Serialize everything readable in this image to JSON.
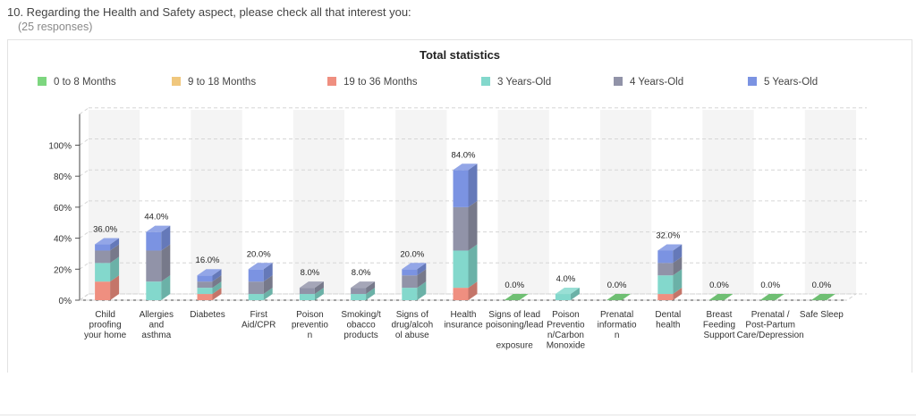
{
  "question": {
    "title": "10. Regarding the Health and Safety aspect, please check all that interest you:",
    "responses": "(25 responses)"
  },
  "chart_data": {
    "type": "bar",
    "stacked": true,
    "three_d": true,
    "title": "Total statistics",
    "xlabel": "",
    "ylabel": "",
    "ylim": [
      0,
      120
    ],
    "yticks": [
      0,
      20,
      40,
      60,
      80,
      100
    ],
    "ytick_labels": [
      "0%",
      "20%",
      "40%",
      "60%",
      "80%",
      "100%"
    ],
    "grid": true,
    "legend_position": "top",
    "categories": [
      [
        "Child",
        "proofing",
        "your home"
      ],
      [
        "Allergies",
        "and",
        "asthma"
      ],
      [
        "Diabetes"
      ],
      [
        "First",
        "Aid/CPR"
      ],
      [
        "Poison",
        "preventio",
        "n"
      ],
      [
        "Smoking/t",
        "obacco",
        "products"
      ],
      [
        "Signs of",
        "drug/alcoh",
        "ol abuse"
      ],
      [
        "Health",
        "insurance"
      ],
      [
        "Signs of lead",
        "poisoning/lead",
        "",
        "exposure"
      ],
      [
        "Poison",
        "Preventio",
        "n/Carbon",
        "Monoxide"
      ],
      [
        "Prenatal",
        "informatio",
        "n"
      ],
      [
        "Dental",
        "health"
      ],
      [
        "Breast",
        "Feeding",
        "Support"
      ],
      [
        "Prenatal /",
        "Post-Partum",
        "Care/Depression"
      ],
      [
        "Safe Sleep"
      ]
    ],
    "totals": [
      "36.0%",
      "44.0%",
      "16.0%",
      "20.0%",
      "8.0%",
      "8.0%",
      "20.0%",
      "84.0%",
      "0.0%",
      "4.0%",
      "0.0%",
      "32.0%",
      "0.0%",
      "0.0%",
      "0.0%"
    ],
    "series": [
      {
        "name": "0 to 8 Months",
        "color": "#7dd67f",
        "values": [
          0,
          0,
          0,
          0,
          0,
          0,
          0,
          0,
          0,
          0,
          0,
          0,
          0,
          0,
          0
        ]
      },
      {
        "name": "9 to 18 Months",
        "color": "#f0c77d",
        "values": [
          0,
          0,
          0,
          0,
          0,
          0,
          0,
          0,
          0,
          0,
          0,
          0,
          0,
          0,
          0
        ]
      },
      {
        "name": "19 to 36 Months",
        "color": "#ef8f80",
        "values": [
          12,
          0,
          4,
          0,
          0,
          0,
          0,
          8,
          0,
          0,
          0,
          4,
          0,
          0,
          0
        ]
      },
      {
        "name": "3 Years-Old",
        "color": "#83d8cc",
        "values": [
          12,
          12,
          4,
          4,
          4,
          4,
          8,
          24,
          0,
          4,
          0,
          12,
          0,
          0,
          0
        ]
      },
      {
        "name": "4 Years-Old",
        "color": "#9193a8",
        "values": [
          8,
          20,
          4,
          8,
          4,
          4,
          8,
          28,
          0,
          0,
          0,
          8,
          0,
          0,
          0
        ]
      },
      {
        "name": "5 Years-Old",
        "color": "#7b93e2",
        "values": [
          4,
          12,
          4,
          8,
          0,
          0,
          4,
          24,
          0,
          0,
          0,
          8,
          0,
          0,
          0
        ]
      }
    ]
  }
}
